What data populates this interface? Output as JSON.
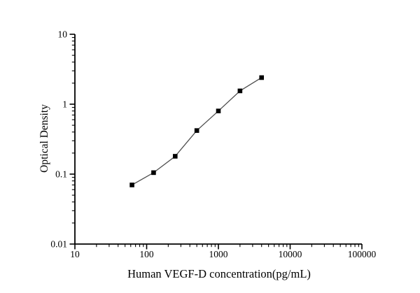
{
  "figure": {
    "background": "#ffffff",
    "axis_color": "#000000",
    "text_color": "#000000"
  },
  "chart_data": {
    "type": "line",
    "title": "",
    "xlabel": "Human VEGF-D concentration(pg/mL)",
    "ylabel": "Optical Density",
    "x_scale": "log",
    "y_scale": "log",
    "xlim": [
      10,
      100000
    ],
    "ylim": [
      0.01,
      10
    ],
    "x_ticks": [
      10,
      100,
      1000,
      10000,
      100000
    ],
    "x_tick_labels": [
      "10",
      "100",
      "1000",
      "10000",
      "100000"
    ],
    "y_ticks": [
      10,
      1,
      0.1,
      0.01
    ],
    "y_tick_labels": [
      "10",
      "1",
      "0.1",
      "0.01"
    ],
    "grid": false,
    "legend": "none",
    "tick_direction": "out",
    "series": [
      {
        "name": "human-vegf-d-standard-curve",
        "x": [
          62.5,
          125,
          250,
          500,
          1000,
          2000,
          4000
        ],
        "y": [
          0.07,
          0.105,
          0.18,
          0.42,
          0.8,
          1.55,
          2.4
        ],
        "marker": "square",
        "marker_size": 6.6,
        "marker_color": "#000000",
        "line_color": "#4d4d4d"
      }
    ]
  }
}
